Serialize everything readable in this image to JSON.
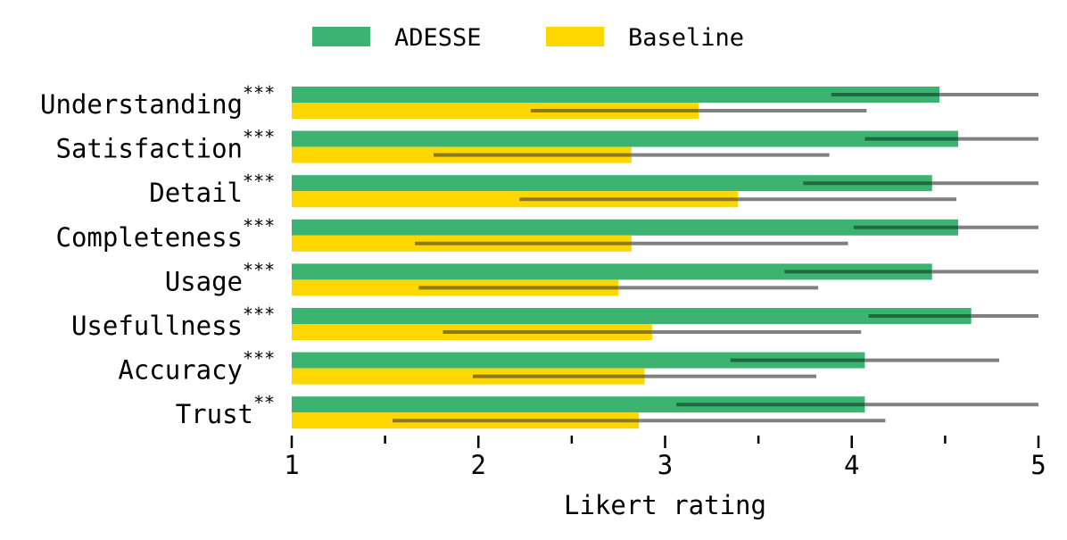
{
  "chart_data": {
    "type": "bar",
    "orientation": "horizontal",
    "xlabel": "Likert rating",
    "xlim": [
      1,
      5
    ],
    "xticks": [
      1,
      2,
      3,
      4,
      5
    ],
    "xminor_ticks": [
      1.5,
      2.5,
      3.5,
      4.5
    ],
    "legend_position": "top",
    "categories": [
      "Understanding",
      "Satisfaction",
      "Detail",
      "Completeness",
      "Usage",
      "Usefullness",
      "Accuracy",
      "Trust"
    ],
    "significance": [
      "***",
      "***",
      "***",
      "***",
      "***",
      "***",
      "***",
      "**"
    ],
    "series": [
      {
        "name": "ADESSE",
        "color": "#3cb371",
        "errorbar_color": "#1e6b40",
        "values": [
          4.47,
          4.57,
          4.43,
          4.57,
          4.43,
          4.64,
          4.07,
          4.07
        ],
        "error": [
          0.58,
          0.5,
          0.69,
          0.56,
          0.79,
          0.55,
          0.72,
          1.01
        ]
      },
      {
        "name": "Baseline",
        "color": "#ffd700",
        "errorbar_color": "#8a7a1a",
        "values": [
          3.18,
          2.82,
          3.39,
          2.82,
          2.75,
          2.93,
          2.89,
          2.86
        ],
        "error": [
          0.9,
          1.06,
          1.17,
          1.16,
          1.07,
          1.12,
          0.92,
          1.32
        ]
      }
    ]
  }
}
